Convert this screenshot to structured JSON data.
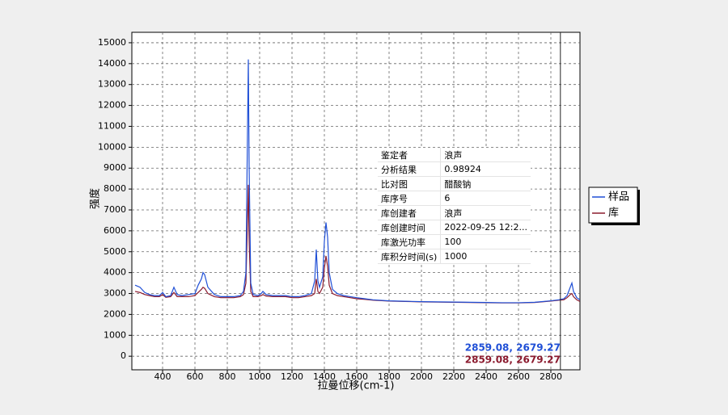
{
  "chart_data": {
    "type": "line",
    "xlabel": "拉曼位移(cm-1)",
    "ylabel": "强度",
    "xlim": [
      210,
      2980
    ],
    "ylim": [
      -650,
      15500
    ],
    "xticks": [
      400,
      600,
      800,
      1000,
      1200,
      1400,
      1600,
      1800,
      2000,
      2200,
      2400,
      2600,
      2800
    ],
    "yticks": [
      0,
      1000,
      2000,
      3000,
      4000,
      5000,
      6000,
      7000,
      8000,
      9000,
      10000,
      11000,
      12000,
      13000,
      14000,
      15000
    ],
    "grid": true,
    "legend": "right",
    "x": [
      230,
      260,
      290,
      320,
      350,
      380,
      400,
      420,
      450,
      470,
      490,
      520,
      560,
      600,
      620,
      640,
      650,
      660,
      680,
      720,
      760,
      800,
      840,
      880,
      900,
      915,
      925,
      930,
      935,
      945,
      960,
      990,
      1010,
      1020,
      1040,
      1080,
      1120,
      1160,
      1200,
      1240,
      1280,
      1320,
      1340,
      1350,
      1360,
      1370,
      1390,
      1400,
      1410,
      1420,
      1430,
      1450,
      1480,
      1520,
      1560,
      1600,
      1650,
      1700,
      1800,
      1900,
      2000,
      2100,
      2200,
      2300,
      2400,
      2500,
      2600,
      2700,
      2800,
      2850,
      2880,
      2900,
      2920,
      2930,
      2940,
      2960,
      2980
    ],
    "series": [
      {
        "name": "样品",
        "color": "#1f4fd6",
        "values": [
          3400,
          3300,
          3050,
          2950,
          2900,
          2900,
          3050,
          2850,
          2900,
          3300,
          2950,
          2900,
          2950,
          3000,
          3400,
          3700,
          4000,
          3900,
          3300,
          2950,
          2850,
          2850,
          2850,
          2900,
          3100,
          4000,
          10800,
          14200,
          9000,
          3500,
          2950,
          2900,
          3000,
          3100,
          2950,
          2900,
          2900,
          2900,
          2850,
          2850,
          2900,
          3000,
          3600,
          5100,
          3600,
          3300,
          3800,
          5500,
          6400,
          5700,
          4000,
          3200,
          3000,
          2900,
          2850,
          2800,
          2750,
          2700,
          2650,
          2630,
          2610,
          2600,
          2590,
          2580,
          2570,
          2560,
          2560,
          2580,
          2650,
          2700,
          2750,
          2900,
          3300,
          3500,
          3100,
          2800,
          2700
        ]
      },
      {
        "name": "库",
        "color": "#8b1a2e",
        "values": [
          3100,
          3050,
          2950,
          2900,
          2850,
          2850,
          2950,
          2820,
          2850,
          3050,
          2850,
          2850,
          2850,
          2900,
          3050,
          3200,
          3300,
          3250,
          3000,
          2850,
          2800,
          2800,
          2800,
          2850,
          2950,
          3500,
          6500,
          8200,
          5500,
          3100,
          2850,
          2850,
          2900,
          2950,
          2880,
          2850,
          2850,
          2850,
          2800,
          2800,
          2850,
          2900,
          3000,
          3700,
          3100,
          3000,
          3300,
          4200,
          4800,
          4300,
          3400,
          3000,
          2900,
          2850,
          2800,
          2750,
          2720,
          2680,
          2640,
          2620,
          2600,
          2590,
          2580,
          2570,
          2560,
          2550,
          2550,
          2570,
          2640,
          2680,
          2700,
          2800,
          2950,
          3000,
          2850,
          2700,
          2620
        ]
      }
    ],
    "cursor_x": 2859.08,
    "cursor_readouts": [
      "2859.08, 2679.27",
      "2859.08, 2679.27"
    ],
    "info_table": [
      [
        "鉴定者",
        "浪声"
      ],
      [
        "分析结果",
        "0.98924"
      ],
      [
        "比对图",
        "醋酸钠"
      ],
      [
        "库序号",
        "6"
      ],
      [
        "库创建者",
        "浪声"
      ],
      [
        "库创建时间",
        "2022-09-25 12:2..."
      ],
      [
        "库激光功率",
        "100"
      ],
      [
        "库积分时间(s)",
        "1000"
      ]
    ]
  }
}
